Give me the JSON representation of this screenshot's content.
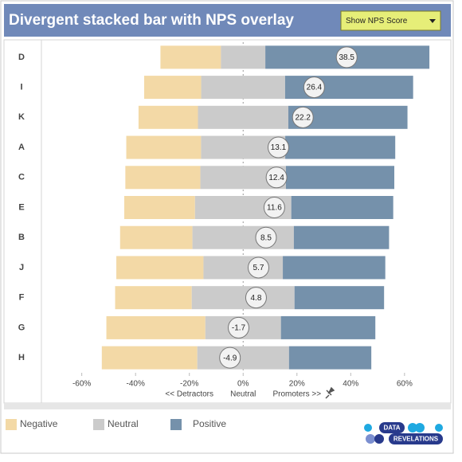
{
  "chart_data": {
    "type": "divergent-bar",
    "title": "Divergent stacked bar with NPS overlay",
    "control": {
      "label": "Show NPS Score"
    },
    "categories": [
      "D",
      "I",
      "K",
      "A",
      "C",
      "E",
      "B",
      "J",
      "F",
      "G",
      "H"
    ],
    "series": [
      {
        "name": "Negative",
        "color": "#f3d9a6",
        "values": [
          22.5,
          21.2,
          22.1,
          27.8,
          27.9,
          26.3,
          26.9,
          32.4,
          28.5,
          36.8,
          35.5
        ]
      },
      {
        "name": "Neutral",
        "color": "#cbcbcb",
        "values": [
          16.5,
          31.2,
          33.6,
          31.3,
          31.8,
          35.8,
          37.7,
          29.5,
          38.2,
          28.1,
          34.1
        ]
      },
      {
        "name": "Positive",
        "color": "#7591ab",
        "values": [
          61,
          47.6,
          44.3,
          40.9,
          40.3,
          37.9,
          35.4,
          38.1,
          33.3,
          35.1,
          30.6
        ]
      }
    ],
    "nps": {
      "values": [
        38.5,
        26.4,
        22.2,
        13.1,
        12.4,
        11.6,
        8.5,
        5.7,
        4.8,
        -1.7,
        -4.9
      ]
    },
    "xlim": [
      -75,
      79
    ],
    "xticks": [
      {
        "value": -60,
        "label": "-60%"
      },
      {
        "value": -40,
        "label": "-40%"
      },
      {
        "value": -20,
        "label": "-20%"
      },
      {
        "value": 0,
        "label": "0%"
      },
      {
        "value": 20,
        "label": "20%"
      },
      {
        "value": 40,
        "label": "40%"
      },
      {
        "value": 60,
        "label": "60%"
      }
    ],
    "axis_annotations": [
      "<< Detractors",
      "Neutral",
      "Promoters >>"
    ]
  },
  "logo": {
    "line1": "DATA",
    "line2": "REVELATIONS"
  }
}
